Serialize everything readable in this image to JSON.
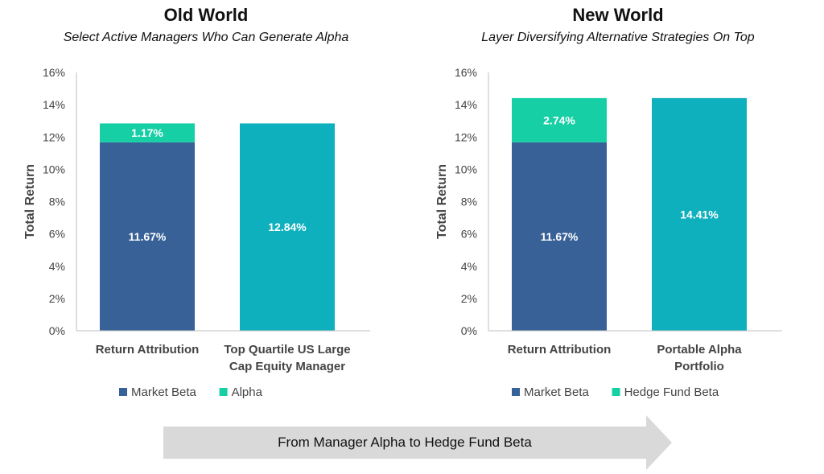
{
  "arrow": {
    "label": "From Manager Alpha to Hedge Fund Beta",
    "color": "#d9d9d9"
  },
  "colors": {
    "market_beta": "#376197",
    "alpha": "#16cfa5",
    "portfolio": "#0eb0bd"
  },
  "chart_data": [
    {
      "type": "bar",
      "title": "Old World",
      "subtitle": "Select Active Managers Who Can Generate Alpha",
      "ylabel": "Total Return",
      "ylim": [
        0,
        16
      ],
      "yticks": [
        "0%",
        "2%",
        "4%",
        "6%",
        "8%",
        "10%",
        "12%",
        "14%",
        "16%"
      ],
      "categories": [
        "Return Attribution",
        "Top Quartile US Large Cap Equity Manager"
      ],
      "category_lines": [
        [
          "Return Attribution"
        ],
        [
          "Top Quartile US Large",
          "Cap Equity Manager"
        ]
      ],
      "series": [
        {
          "name": "Market Beta",
          "color": "#376197",
          "values": [
            11.67,
            null
          ],
          "labels": [
            "11.67%",
            ""
          ]
        },
        {
          "name": "Alpha",
          "color": "#16cfa5",
          "values": [
            1.17,
            null
          ],
          "labels": [
            "1.17%",
            ""
          ]
        },
        {
          "name": "",
          "color": "#0eb0bd",
          "values": [
            null,
            12.84
          ],
          "labels": [
            "",
            "12.84%"
          ]
        }
      ],
      "legend": [
        {
          "name": "Market Beta",
          "color": "#376197"
        },
        {
          "name": "Alpha",
          "color": "#16cfa5"
        }
      ],
      "legend_position": "bottom",
      "grid": false
    },
    {
      "type": "bar",
      "title": "New World",
      "subtitle": "Layer Diversifying Alternative Strategies On Top",
      "ylabel": "Total Return",
      "ylim": [
        0,
        16
      ],
      "yticks": [
        "0%",
        "2%",
        "4%",
        "6%",
        "8%",
        "10%",
        "12%",
        "14%",
        "16%"
      ],
      "categories": [
        "Return Attribution",
        "Portable Alpha Portfolio"
      ],
      "category_lines": [
        [
          "Return Attribution"
        ],
        [
          "Portable Alpha",
          "Portfolio"
        ]
      ],
      "series": [
        {
          "name": "Market Beta",
          "color": "#376197",
          "values": [
            11.67,
            null
          ],
          "labels": [
            "11.67%",
            ""
          ]
        },
        {
          "name": "Hedge Fund Beta",
          "color": "#16cfa5",
          "values": [
            2.74,
            null
          ],
          "labels": [
            "2.74%",
            ""
          ]
        },
        {
          "name": "",
          "color": "#0eb0bd",
          "values": [
            null,
            14.41
          ],
          "labels": [
            "",
            "14.41%"
          ]
        }
      ],
      "legend": [
        {
          "name": "Market Beta",
          "color": "#376197"
        },
        {
          "name": "Hedge Fund Beta",
          "color": "#16cfa5"
        }
      ],
      "legend_position": "bottom",
      "grid": false
    }
  ]
}
